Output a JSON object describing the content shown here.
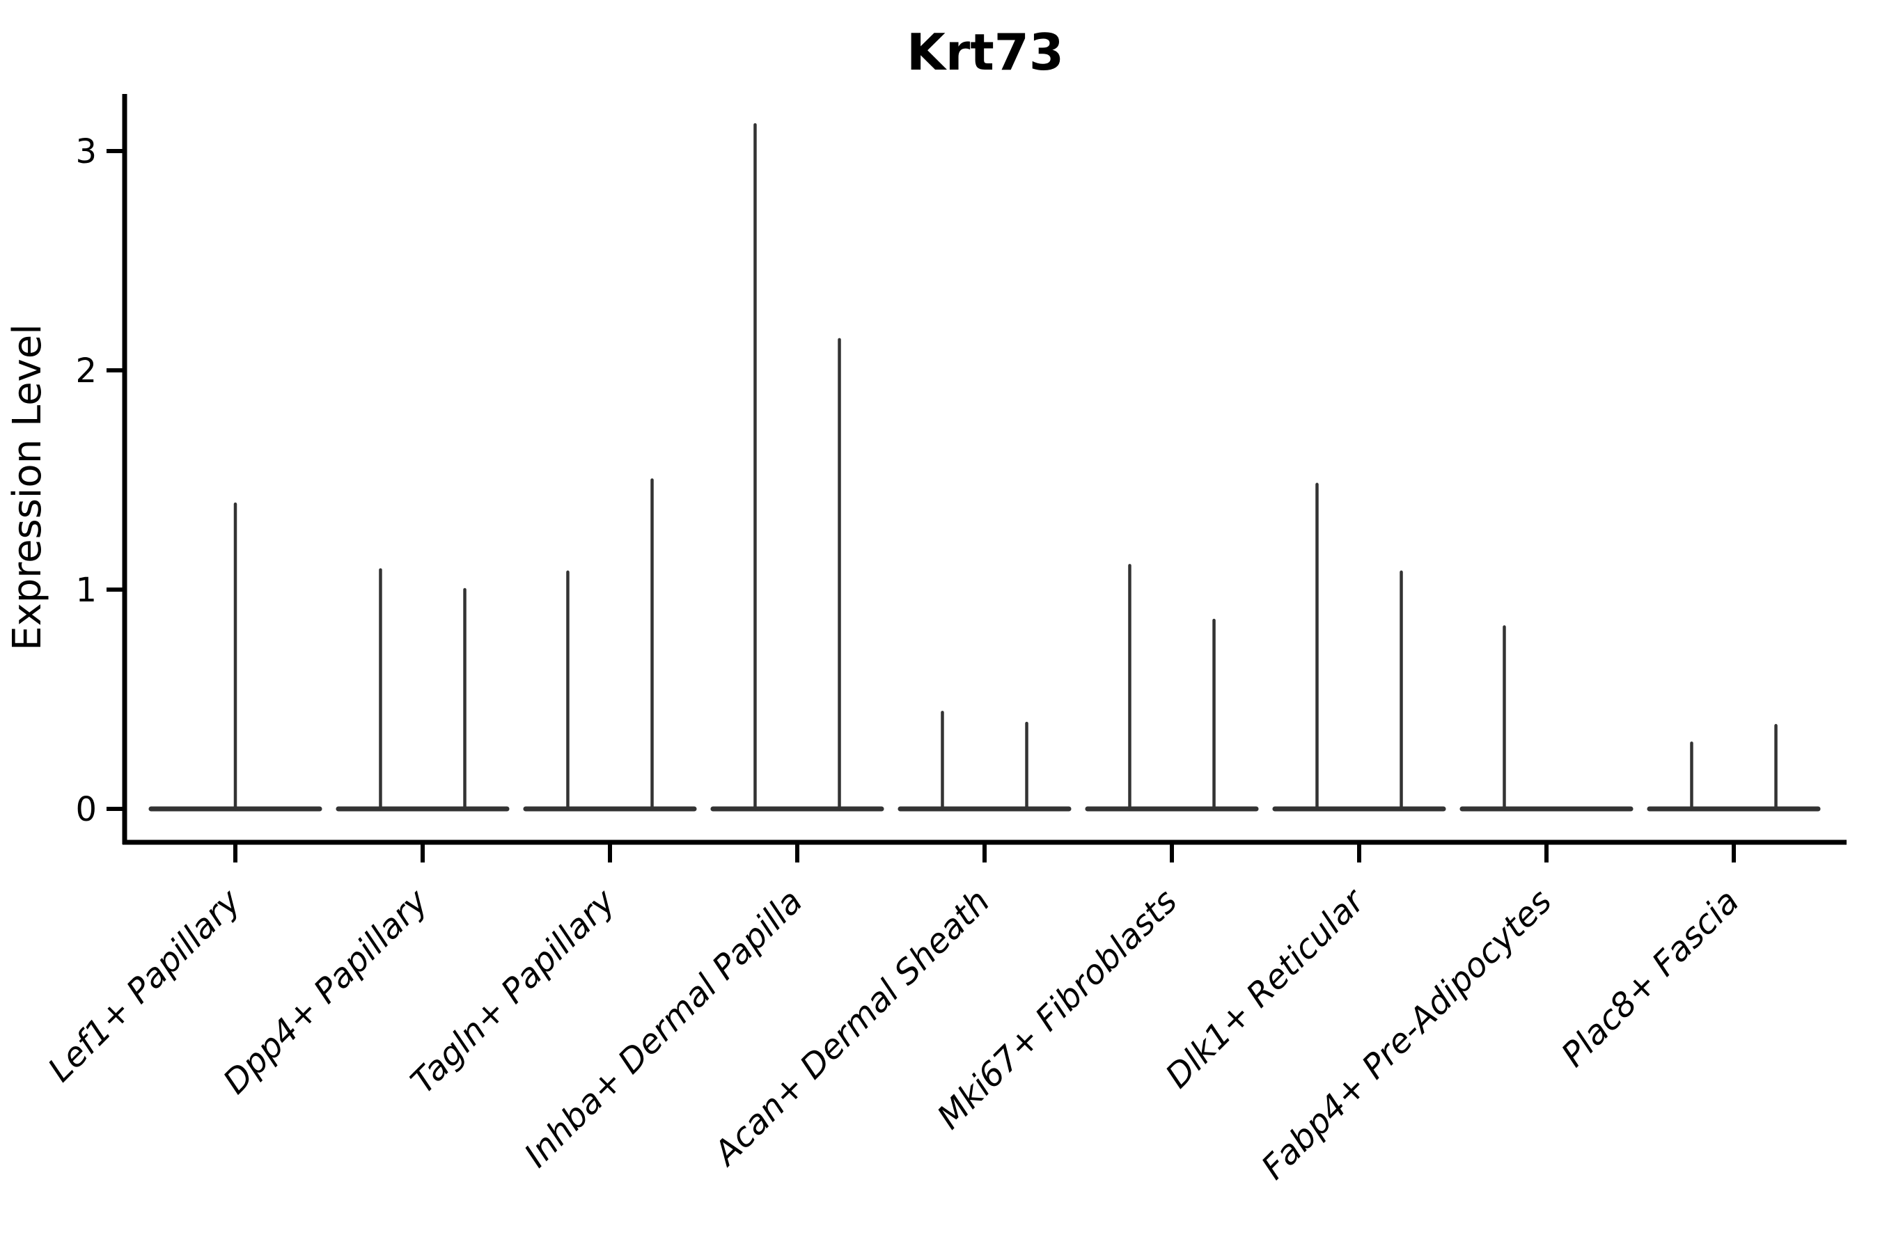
{
  "title": "Krt73",
  "colors": {
    "background": "#ffffff",
    "violin_line": "#333333",
    "axis": "#000000",
    "text": "#000000"
  },
  "chart_data": {
    "type": "violin",
    "title": "Krt73",
    "xlabel": "",
    "ylabel": "Expression Level",
    "ylim": [
      0,
      3.35
    ],
    "yticks": [
      0,
      1,
      2,
      3
    ],
    "grid": false,
    "legend": "none",
    "categories": [
      "Lef1+ Papillary",
      "Dpp4+ Papillary",
      "Tagln+ Papillary",
      "Inhba+ Dermal Papilla",
      "Acan+ Dermal Sheath",
      "Mki67+ Fibroblasts",
      "Dlk1+ Reticular",
      "Fabp4+ Pre-Adipocytes",
      "Plac8+ Fascia"
    ],
    "violin_description": "Each category shows a flat violin base at expression 0 with narrow spikes rising to the maximum expression values; pos is the horizontal offset of each spike within the category (fraction of category spacing).",
    "baseline_halfwidth_frac": 0.45,
    "violins": [
      {
        "category": "Lef1+ Papillary",
        "spikes": [
          {
            "pos": 0,
            "value": 1.39
          }
        ]
      },
      {
        "category": "Dpp4+ Papillary",
        "spikes": [
          {
            "pos": -0.225,
            "value": 1.09
          },
          {
            "pos": 0.225,
            "value": 1.0
          }
        ]
      },
      {
        "category": "Tagln+ Papillary",
        "spikes": [
          {
            "pos": -0.225,
            "value": 1.08
          },
          {
            "pos": 0.225,
            "value": 1.5
          }
        ]
      },
      {
        "category": "Inhba+ Dermal Papilla",
        "spikes": [
          {
            "pos": -0.225,
            "value": 3.12
          },
          {
            "pos": 0.225,
            "value": 2.14
          }
        ]
      },
      {
        "category": "Acan+ Dermal Sheath",
        "spikes": [
          {
            "pos": -0.225,
            "value": 0.44
          },
          {
            "pos": 0.225,
            "value": 0.39
          }
        ]
      },
      {
        "category": "Mki67+ Fibroblasts",
        "spikes": [
          {
            "pos": -0.225,
            "value": 1.11
          },
          {
            "pos": 0.225,
            "value": 0.86
          }
        ]
      },
      {
        "category": "Dlk1+ Reticular",
        "spikes": [
          {
            "pos": -0.225,
            "value": 1.48
          },
          {
            "pos": 0.225,
            "value": 1.08
          }
        ]
      },
      {
        "category": "Fabp4+ Pre-Adipocytes",
        "spikes": [
          {
            "pos": -0.225,
            "value": 0.83
          }
        ]
      },
      {
        "category": "Plac8+ Fascia",
        "spikes": [
          {
            "pos": -0.225,
            "value": 0.3
          },
          {
            "pos": 0.225,
            "value": 0.38
          }
        ]
      }
    ]
  }
}
